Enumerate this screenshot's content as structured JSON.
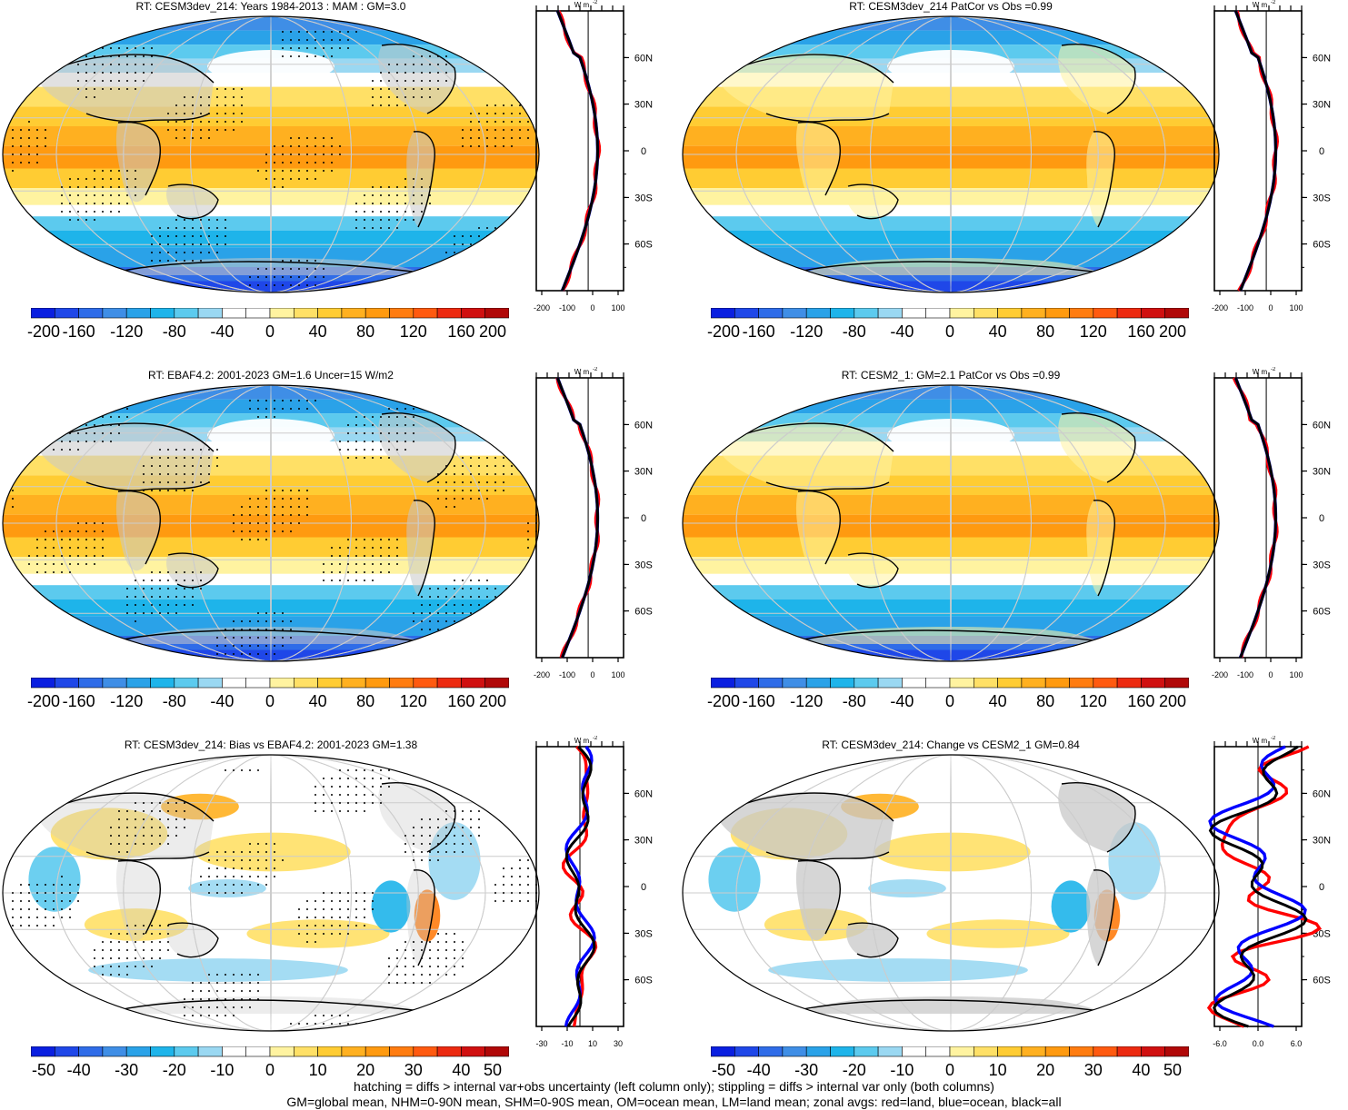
{
  "panels": [
    {
      "id": "p1",
      "title": "RT: CESM3dev_214: Years 1984-2013 : MAM : GM=3.0",
      "cbar_ticks": [
        "-200",
        "-160",
        "-120",
        "-80",
        "-40",
        "0",
        "40",
        "80",
        "120",
        "160",
        "200"
      ],
      "zonal_xticks": [
        "-200",
        "-100",
        "0",
        "100"
      ],
      "kind": "full",
      "stipple": true
    },
    {
      "id": "p2",
      "title": "RT: CESM3dev_214 PatCor vs Obs =0.99",
      "cbar_ticks": [
        "-200",
        "-160",
        "-120",
        "-80",
        "-40",
        "0",
        "40",
        "80",
        "120",
        "160",
        "200"
      ],
      "zonal_xticks": [
        "-200",
        "-100",
        "0",
        "100"
      ],
      "kind": "full",
      "stipple": false
    },
    {
      "id": "p3",
      "title": "RT: EBAF4.2: 2001-2023 GM=1.6 Uncer=15 W/m2",
      "cbar_ticks": [
        "-200",
        "-160",
        "-120",
        "-80",
        "-40",
        "0",
        "40",
        "80",
        "120",
        "160",
        "200"
      ],
      "zonal_xticks": [
        "-200",
        "-100",
        "0",
        "100"
      ],
      "kind": "full",
      "stipple": true
    },
    {
      "id": "p4",
      "title": "RT: CESM2_1: GM=2.1 PatCor vs Obs =0.99",
      "cbar_ticks": [
        "-200",
        "-160",
        "-120",
        "-80",
        "-40",
        "0",
        "40",
        "80",
        "120",
        "160",
        "200"
      ],
      "zonal_xticks": [
        "-200",
        "-100",
        "0",
        "100"
      ],
      "kind": "full",
      "stipple": false
    },
    {
      "id": "p5",
      "title": "RT: CESM3dev_214: Bias vs EBAF4.2: 2001-2023 GM=1.38",
      "cbar_ticks": [
        "-50",
        "-40",
        "-30",
        "-20",
        "-10",
        "0",
        "10",
        "20",
        "30",
        "40",
        "50"
      ],
      "zonal_xticks": [
        "-30",
        "-10",
        "10",
        "30"
      ],
      "kind": "diff",
      "stipple": true
    },
    {
      "id": "p6",
      "title": "RT: CESM3dev_214: Change vs CESM2_1 GM=0.84",
      "cbar_ticks": [
        "-50",
        "-40",
        "-30",
        "-20",
        "-10",
        "0",
        "10",
        "20",
        "30",
        "40",
        "50"
      ],
      "zonal_xticks": [
        "-6.0",
        "0.0",
        "6.0"
      ],
      "kind": "diff",
      "stipple": false
    }
  ],
  "zonal_unit_label": "W m",
  "zonal_unit_exp": "-2",
  "lat_labels": [
    "60N",
    "30N",
    "0",
    "30S",
    "60S"
  ],
  "colors": {
    "scale": [
      "#0a1fe0",
      "#1f47e8",
      "#2f6ce8",
      "#3f8ee6",
      "#2aa2e8",
      "#1eb4ea",
      "#5ccaee",
      "#9ad8f2",
      "#ffffff",
      "#ffffff",
      "#fff3a0",
      "#ffe066",
      "#ffcc33",
      "#ffb020",
      "#ff9a10",
      "#ff7c10",
      "#ff5a10",
      "#ec2a10",
      "#d01010",
      "#b00808"
    ],
    "land_gray": "#c8c8c8",
    "zonal_land": "#ff0000",
    "zonal_ocean": "#0000ff",
    "zonal_all": "#000000"
  },
  "footer": {
    "line1": "hatching = diffs > internal var+obs uncertainty (left column only); stippling = diffs > internal var only (both columns)",
    "line2": "GM=global mean, NHM=0-90N mean, SHM=0-90S mean, OM=ocean mean, LM=land mean; zonal avgs: red=land, blue=ocean, black=all"
  }
}
